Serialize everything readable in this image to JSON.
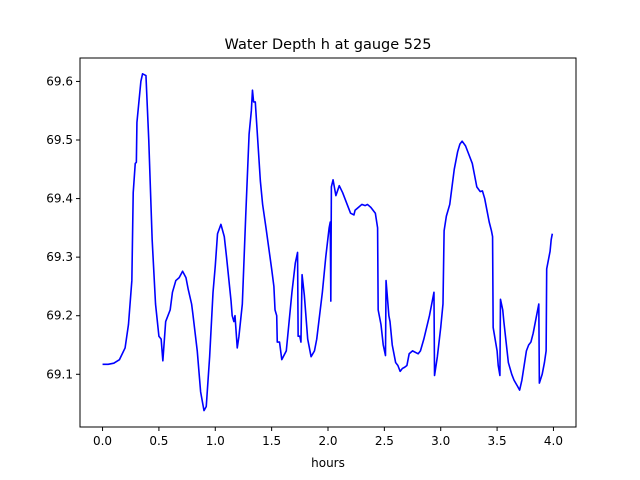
{
  "chart_data": {
    "type": "line",
    "title": "Water Depth h at gauge 525",
    "xlabel": "hours",
    "ylabel": "",
    "xlim": [
      -0.2,
      4.2
    ],
    "ylim": [
      69.01,
      69.64
    ],
    "grid": false,
    "legend": "none",
    "x_ticks": [
      0.0,
      0.5,
      1.0,
      1.5,
      2.0,
      2.5,
      3.0,
      3.5,
      4.0
    ],
    "x_tick_labels": [
      "0.0",
      "0.5",
      "1.0",
      "1.5",
      "2.0",
      "2.5",
      "3.0",
      "3.5",
      "4.0"
    ],
    "y_ticks": [
      69.1,
      69.2,
      69.3,
      69.4,
      69.5,
      69.6
    ],
    "y_tick_labels": [
      "69.1",
      "69.2",
      "69.3",
      "69.4",
      "69.5",
      "69.6"
    ],
    "series": [
      {
        "name": "",
        "color": "#0000ff",
        "points": [
          [
            0.0,
            69.117
          ],
          [
            0.05,
            69.117
          ],
          [
            0.1,
            69.119
          ],
          [
            0.15,
            69.125
          ],
          [
            0.2,
            69.145
          ],
          [
            0.23,
            69.185
          ],
          [
            0.26,
            69.26
          ],
          [
            0.272,
            69.41
          ],
          [
            0.29,
            69.46
          ],
          [
            0.3,
            69.462
          ],
          [
            0.305,
            69.53
          ],
          [
            0.34,
            69.6
          ],
          [
            0.355,
            69.613
          ],
          [
            0.385,
            69.61
          ],
          [
            0.41,
            69.5
          ],
          [
            0.44,
            69.33
          ],
          [
            0.47,
            69.22
          ],
          [
            0.5,
            69.165
          ],
          [
            0.52,
            69.16
          ],
          [
            0.535,
            69.123
          ],
          [
            0.56,
            69.19
          ],
          [
            0.6,
            69.21
          ],
          [
            0.62,
            69.24
          ],
          [
            0.65,
            69.26
          ],
          [
            0.68,
            69.265
          ],
          [
            0.71,
            69.276
          ],
          [
            0.74,
            69.265
          ],
          [
            0.76,
            69.245
          ],
          [
            0.79,
            69.22
          ],
          [
            0.8,
            69.205
          ],
          [
            0.84,
            69.14
          ],
          [
            0.87,
            69.07
          ],
          [
            0.9,
            69.038
          ],
          [
            0.92,
            69.045
          ],
          [
            0.95,
            69.13
          ],
          [
            0.98,
            69.24
          ],
          [
            1.0,
            69.285
          ],
          [
            1.02,
            69.34
          ],
          [
            1.05,
            69.356
          ],
          [
            1.08,
            69.335
          ],
          [
            1.1,
            69.3
          ],
          [
            1.14,
            69.225
          ],
          [
            1.15,
            69.2
          ],
          [
            1.165,
            69.19
          ],
          [
            1.175,
            69.2
          ],
          [
            1.195,
            69.145
          ],
          [
            1.21,
            69.165
          ],
          [
            1.24,
            69.22
          ],
          [
            1.25,
            69.27
          ],
          [
            1.27,
            69.37
          ],
          [
            1.3,
            69.51
          ],
          [
            1.32,
            69.55
          ],
          [
            1.33,
            69.585
          ],
          [
            1.34,
            69.565
          ],
          [
            1.355,
            69.565
          ],
          [
            1.36,
            69.55
          ],
          [
            1.4,
            69.43
          ],
          [
            1.42,
            69.39
          ],
          [
            1.45,
            69.35
          ],
          [
            1.5,
            69.28
          ],
          [
            1.52,
            69.25
          ],
          [
            1.53,
            69.21
          ],
          [
            1.545,
            69.2
          ],
          [
            1.55,
            69.155
          ],
          [
            1.57,
            69.155
          ],
          [
            1.59,
            69.125
          ],
          [
            1.63,
            69.14
          ],
          [
            1.68,
            69.24
          ],
          [
            1.71,
            69.29
          ],
          [
            1.73,
            69.308
          ],
          [
            1.735,
            69.165
          ],
          [
            1.75,
            69.165
          ],
          [
            1.76,
            69.155
          ],
          [
            1.77,
            69.27
          ],
          [
            1.79,
            69.235
          ],
          [
            1.82,
            69.16
          ],
          [
            1.85,
            69.13
          ],
          [
            1.88,
            69.14
          ],
          [
            1.9,
            69.16
          ],
          [
            1.95,
            69.24
          ],
          [
            1.98,
            69.3
          ],
          [
            2.01,
            69.35
          ],
          [
            2.02,
            69.36
          ],
          [
            2.025,
            69.225
          ],
          [
            2.03,
            69.42
          ],
          [
            2.045,
            69.432
          ],
          [
            2.07,
            69.405
          ],
          [
            2.1,
            69.422
          ],
          [
            2.13,
            69.41
          ],
          [
            2.17,
            69.39
          ],
          [
            2.2,
            69.375
          ],
          [
            2.23,
            69.372
          ],
          [
            2.24,
            69.38
          ],
          [
            2.27,
            69.385
          ],
          [
            2.3,
            69.39
          ],
          [
            2.33,
            69.388
          ],
          [
            2.35,
            69.39
          ],
          [
            2.38,
            69.385
          ],
          [
            2.42,
            69.375
          ],
          [
            2.44,
            69.35
          ],
          [
            2.445,
            69.21
          ],
          [
            2.47,
            69.185
          ],
          [
            2.49,
            69.15
          ],
          [
            2.51,
            69.132
          ],
          [
            2.515,
            69.26
          ],
          [
            2.54,
            69.2
          ],
          [
            2.55,
            69.19
          ],
          [
            2.57,
            69.15
          ],
          [
            2.6,
            69.12
          ],
          [
            2.62,
            69.115
          ],
          [
            2.64,
            69.105
          ],
          [
            2.66,
            69.11
          ],
          [
            2.68,
            69.112
          ],
          [
            2.7,
            69.115
          ],
          [
            2.72,
            69.135
          ],
          [
            2.75,
            69.14
          ],
          [
            2.8,
            69.135
          ],
          [
            2.82,
            69.14
          ],
          [
            2.85,
            69.16
          ],
          [
            2.9,
            69.2
          ],
          [
            2.92,
            69.22
          ],
          [
            2.94,
            69.24
          ],
          [
            2.945,
            69.098
          ],
          [
            2.97,
            69.13
          ],
          [
            3.0,
            69.18
          ],
          [
            3.02,
            69.22
          ],
          [
            3.03,
            69.345
          ],
          [
            3.05,
            69.37
          ],
          [
            3.08,
            69.39
          ],
          [
            3.1,
            69.42
          ],
          [
            3.12,
            69.45
          ],
          [
            3.15,
            69.48
          ],
          [
            3.17,
            69.493
          ],
          [
            3.19,
            69.498
          ],
          [
            3.22,
            69.49
          ],
          [
            3.25,
            69.475
          ],
          [
            3.28,
            69.46
          ],
          [
            3.3,
            69.44
          ],
          [
            3.32,
            69.42
          ],
          [
            3.35,
            69.412
          ],
          [
            3.37,
            69.413
          ],
          [
            3.39,
            69.4
          ],
          [
            3.4,
            69.39
          ],
          [
            3.43,
            69.36
          ],
          [
            3.45,
            69.345
          ],
          [
            3.46,
            69.335
          ],
          [
            3.465,
            69.18
          ],
          [
            3.5,
            69.14
          ],
          [
            3.51,
            69.115
          ],
          [
            3.525,
            69.098
          ],
          [
            3.53,
            69.228
          ],
          [
            3.55,
            69.21
          ],
          [
            3.56,
            69.19
          ],
          [
            3.6,
            69.12
          ],
          [
            3.63,
            69.1
          ],
          [
            3.65,
            69.09
          ],
          [
            3.68,
            69.08
          ],
          [
            3.7,
            69.073
          ],
          [
            3.72,
            69.09
          ],
          [
            3.76,
            69.14
          ],
          [
            3.78,
            69.15
          ],
          [
            3.8,
            69.155
          ],
          [
            3.82,
            69.17
          ],
          [
            3.85,
            69.2
          ],
          [
            3.87,
            69.22
          ],
          [
            3.875,
            69.085
          ],
          [
            3.9,
            69.1
          ],
          [
            3.92,
            69.12
          ],
          [
            3.935,
            69.14
          ],
          [
            3.94,
            69.28
          ],
          [
            3.95,
            69.29
          ],
          [
            3.97,
            69.31
          ],
          [
            3.98,
            69.33
          ],
          [
            3.99,
            69.34
          ]
        ]
      }
    ]
  }
}
